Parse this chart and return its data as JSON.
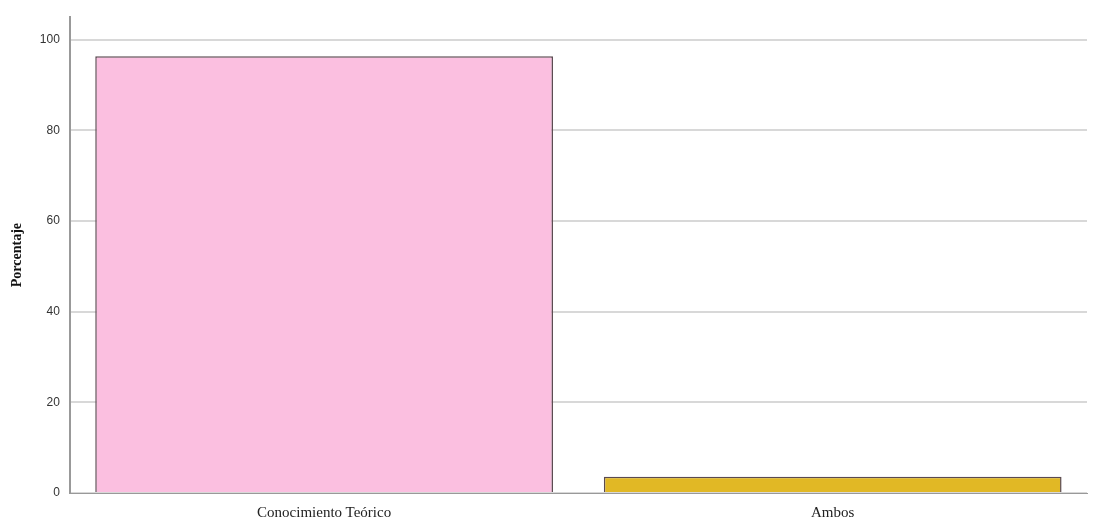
{
  "chart_data": {
    "type": "bar",
    "ylabel": "Porcentaje",
    "categories": [
      "Conocimiento Teórico",
      "Ambos"
    ],
    "values": [
      96.4,
      3.6
    ],
    "colors": [
      "#fbbfe0",
      "#e1b825"
    ],
    "ylim": [
      0,
      105
    ],
    "yticks": [
      0,
      20,
      40,
      60,
      80,
      100
    ],
    "grid": "y",
    "legend": false
  }
}
